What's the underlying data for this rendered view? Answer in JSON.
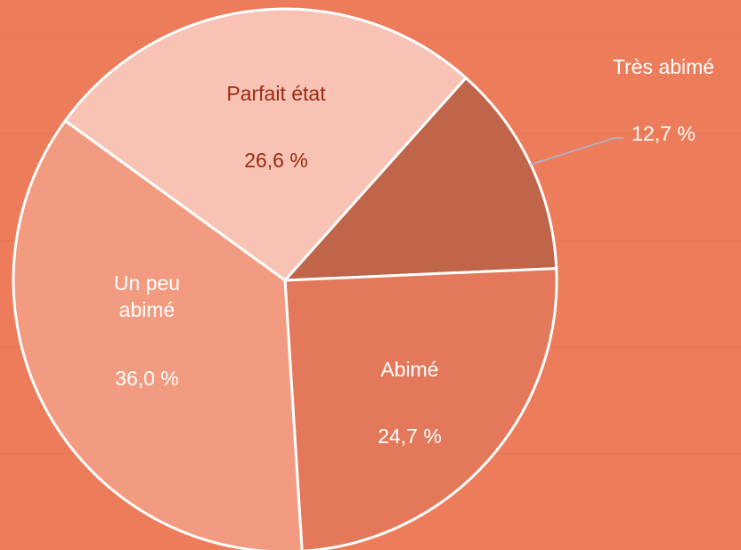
{
  "chart_data": {
    "type": "pie",
    "categories": [
      "Parfait état",
      "Très abimé",
      "Abimé",
      "Un peu abimé"
    ],
    "values": [
      26.6,
      12.7,
      24.7,
      36.0
    ],
    "value_labels": [
      "26,6 %",
      "12,7 %",
      "24,7 %",
      "36,0 %"
    ],
    "colors": [
      "#f8c3b5",
      "#c0644a",
      "#e4785a",
      "#f39b80"
    ]
  }
}
